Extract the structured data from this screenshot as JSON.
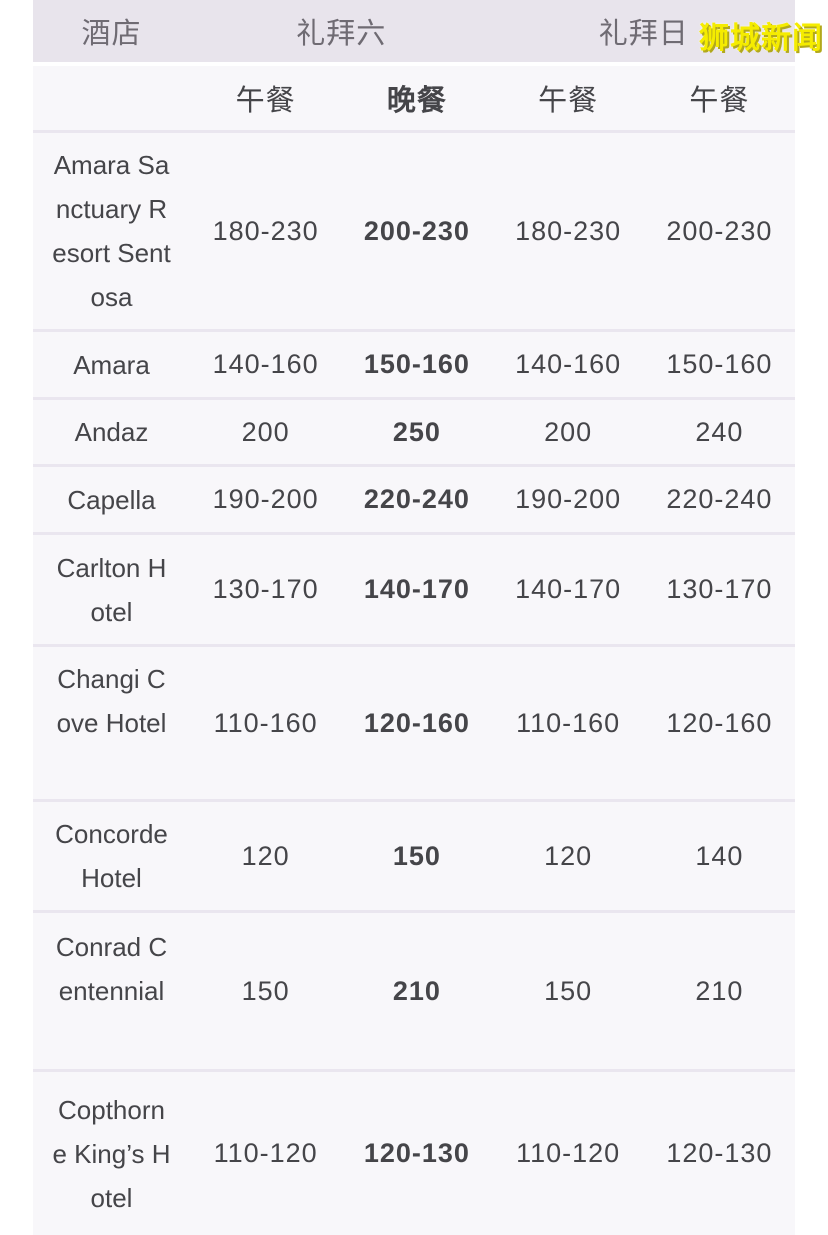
{
  "watermark": {
    "text": "狮城新闻"
  },
  "table": {
    "header_row1": [
      {
        "label": "酒店",
        "span": 1
      },
      {
        "label": "礼拜六",
        "span": 2
      },
      {
        "label": "礼拜日",
        "span": 2
      }
    ],
    "header_row2": [
      "",
      "午餐",
      "晚餐",
      "午餐",
      "午餐"
    ],
    "rows": [
      {
        "hotel": "Amara Sanctuary Resort Sentosa",
        "values": [
          "180-230",
          "200-230",
          "180-230",
          "200-230"
        ]
      },
      {
        "hotel": "Amara",
        "values": [
          "140-160",
          "150-160",
          "140-160",
          "150-160"
        ]
      },
      {
        "hotel": "Andaz",
        "values": [
          "200",
          "250",
          "200",
          "240"
        ]
      },
      {
        "hotel": "Capella",
        "values": [
          "190-200",
          "220-240",
          "190-200",
          "220-240"
        ]
      },
      {
        "hotel": "Carlton Hotel",
        "values": [
          "130-170",
          "140-170",
          "140-170",
          "130-170"
        ]
      },
      {
        "hotel": "Changi Cove Hotel",
        "values": [
          "110-160",
          "120-160",
          "110-160",
          "120-160"
        ]
      },
      {
        "hotel": "Concorde Hotel",
        "values": [
          "120",
          "150",
          "120",
          "140"
        ]
      },
      {
        "hotel": "Conrad Centennial",
        "values": [
          "150",
          "210",
          "150",
          "210"
        ]
      },
      {
        "hotel": "Copthorne King’s Hotel",
        "values": [
          "110-120",
          "120-130",
          "110-120",
          "120-130"
        ]
      }
    ],
    "colors": {
      "header_bg": "#e8e4ec",
      "row_bg": "#f8f7fa",
      "separator": "#eae6ef",
      "text": "#454549",
      "header_text": "#6f6b73",
      "watermark": "#f5ec00",
      "watermark_shadow": "#b1a81c"
    }
  }
}
